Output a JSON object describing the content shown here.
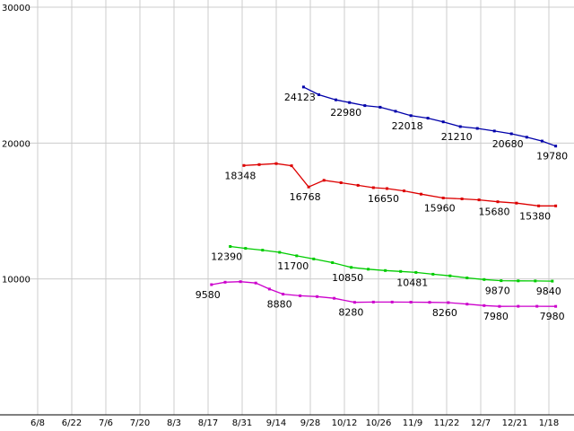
{
  "chart_data": {
    "type": "line",
    "title": "",
    "legend": "none",
    "grid": true,
    "ylim": [
      0,
      30000
    ],
    "y_ticks": [
      10000,
      20000,
      30000
    ],
    "y_tick_labels": [
      "10000",
      "20000",
      "30000"
    ],
    "x_tick_labels": [
      "6/8",
      "6/22",
      "7/6",
      "7/20",
      "8/3",
      "8/17",
      "8/31",
      "9/14",
      "9/28",
      "10/12",
      "10/26",
      "11/9",
      "11/22",
      "12/7",
      "12/21",
      "1/18"
    ],
    "colors": {
      "grid": "#cccccc",
      "axis": "#000000",
      "text": "#000000",
      "background": "#ffffff"
    },
    "axis": {
      "x_origin": 42,
      "x_step": 38,
      "y_origin": 462,
      "y_scale": 0.015133
    },
    "series": [
      {
        "name": "blue",
        "color": "#0000aa",
        "points": [
          {
            "x": 7.8,
            "v": 24123,
            "label": "24123"
          },
          {
            "x": 8.25,
            "v": 23560
          },
          {
            "x": 8.75,
            "v": 23180
          },
          {
            "x": 9.15,
            "v": 22980,
            "label": "22980"
          },
          {
            "x": 9.6,
            "v": 22760
          },
          {
            "x": 10.05,
            "v": 22640
          },
          {
            "x": 10.5,
            "v": 22340
          },
          {
            "x": 10.95,
            "v": 22018,
            "label": "22018"
          },
          {
            "x": 11.45,
            "v": 21830
          },
          {
            "x": 11.9,
            "v": 21560
          },
          {
            "x": 12.4,
            "v": 21210,
            "label": "21210"
          },
          {
            "x": 12.9,
            "v": 21080
          },
          {
            "x": 13.4,
            "v": 20890
          },
          {
            "x": 13.9,
            "v": 20680,
            "label": "20680"
          },
          {
            "x": 14.35,
            "v": 20430
          },
          {
            "x": 14.8,
            "v": 20150
          },
          {
            "x": 15.2,
            "v": 19780,
            "label": "19780"
          }
        ]
      },
      {
        "name": "red",
        "color": "#dd0000",
        "points": [
          {
            "x": 6.05,
            "v": 18348,
            "label": "18348"
          },
          {
            "x": 6.5,
            "v": 18420
          },
          {
            "x": 7.0,
            "v": 18490
          },
          {
            "x": 7.45,
            "v": 18330
          },
          {
            "x": 7.95,
            "v": 16768,
            "label": "16768"
          },
          {
            "x": 8.4,
            "v": 17260
          },
          {
            "x": 8.9,
            "v": 17080
          },
          {
            "x": 9.4,
            "v": 16890
          },
          {
            "x": 9.85,
            "v": 16720
          },
          {
            "x": 10.25,
            "v": 16650,
            "label": "16650"
          },
          {
            "x": 10.75,
            "v": 16480
          },
          {
            "x": 11.25,
            "v": 16240
          },
          {
            "x": 11.9,
            "v": 15960,
            "label": "15960"
          },
          {
            "x": 12.45,
            "v": 15890
          },
          {
            "x": 12.95,
            "v": 15820
          },
          {
            "x": 13.5,
            "v": 15680,
            "label": "15680"
          },
          {
            "x": 14.05,
            "v": 15580
          },
          {
            "x": 14.7,
            "v": 15380,
            "label": "15380"
          },
          {
            "x": 15.2,
            "v": 15380
          }
        ]
      },
      {
        "name": "green",
        "color": "#00cc00",
        "points": [
          {
            "x": 5.65,
            "v": 12390,
            "label": "12390"
          },
          {
            "x": 6.1,
            "v": 12250
          },
          {
            "x": 6.6,
            "v": 12120
          },
          {
            "x": 7.1,
            "v": 11960
          },
          {
            "x": 7.6,
            "v": 11700,
            "label": "11700"
          },
          {
            "x": 8.1,
            "v": 11470
          },
          {
            "x": 8.65,
            "v": 11200
          },
          {
            "x": 9.2,
            "v": 10850,
            "label": "10850"
          },
          {
            "x": 9.7,
            "v": 10720
          },
          {
            "x": 10.2,
            "v": 10620
          },
          {
            "x": 10.65,
            "v": 10550
          },
          {
            "x": 11.1,
            "v": 10481,
            "label": "10481"
          },
          {
            "x": 11.6,
            "v": 10350
          },
          {
            "x": 12.1,
            "v": 10230
          },
          {
            "x": 12.6,
            "v": 10080
          },
          {
            "x": 13.1,
            "v": 9960
          },
          {
            "x": 13.6,
            "v": 9870,
            "label": "9870"
          },
          {
            "x": 14.1,
            "v": 9860
          },
          {
            "x": 14.6,
            "v": 9850
          },
          {
            "x": 15.1,
            "v": 9840,
            "label": "9840"
          }
        ]
      },
      {
        "name": "magenta",
        "color": "#cc00cc",
        "points": [
          {
            "x": 5.1,
            "v": 9580,
            "label": "9580"
          },
          {
            "x": 5.5,
            "v": 9760
          },
          {
            "x": 5.95,
            "v": 9800
          },
          {
            "x": 6.4,
            "v": 9700
          },
          {
            "x": 6.8,
            "v": 9260
          },
          {
            "x": 7.2,
            "v": 8880,
            "label": "8880"
          },
          {
            "x": 7.7,
            "v": 8760
          },
          {
            "x": 8.2,
            "v": 8700
          },
          {
            "x": 8.7,
            "v": 8580
          },
          {
            "x": 9.3,
            "v": 8280,
            "label": "8280"
          },
          {
            "x": 9.85,
            "v": 8300
          },
          {
            "x": 10.4,
            "v": 8300
          },
          {
            "x": 10.95,
            "v": 8290
          },
          {
            "x": 11.5,
            "v": 8280
          },
          {
            "x": 12.05,
            "v": 8260,
            "label": "8260"
          },
          {
            "x": 12.6,
            "v": 8150
          },
          {
            "x": 13.1,
            "v": 8040
          },
          {
            "x": 13.55,
            "v": 7980,
            "label": "7980"
          },
          {
            "x": 14.1,
            "v": 7990
          },
          {
            "x": 14.65,
            "v": 7990
          },
          {
            "x": 15.2,
            "v": 7980,
            "label": "7980"
          }
        ]
      }
    ]
  }
}
